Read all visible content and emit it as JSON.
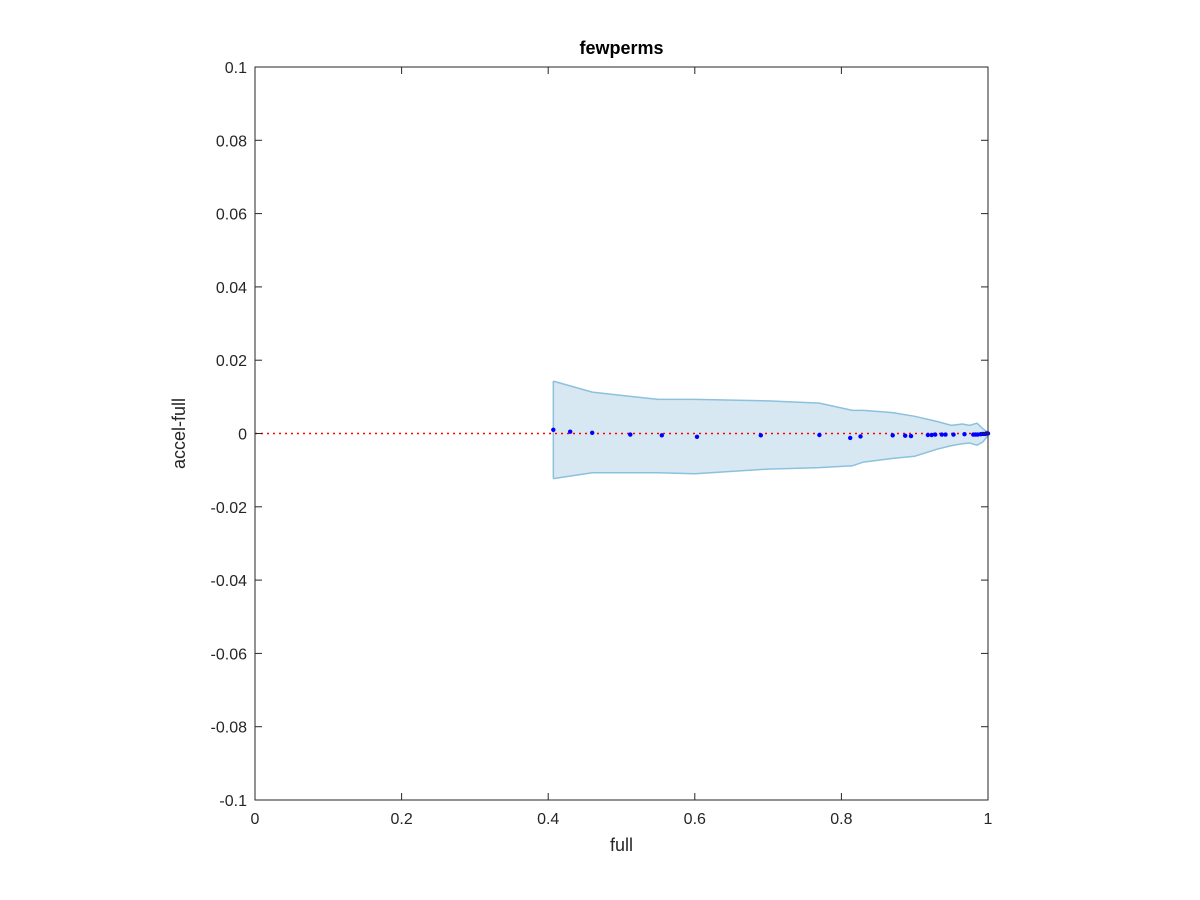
{
  "chart_data": {
    "type": "scatter",
    "title": "fewperms",
    "xlabel": "full",
    "ylabel": "accel-full",
    "xlim": [
      0,
      1
    ],
    "ylim": [
      -0.1,
      0.1
    ],
    "xticks": [
      "0",
      "0.2",
      "0.4",
      "0.6",
      "0.8",
      "1"
    ],
    "xtick_values": [
      0,
      0.2,
      0.4,
      0.6,
      0.8,
      1
    ],
    "yticks": [
      "-0.1",
      "-0.08",
      "-0.06",
      "-0.04",
      "-0.02",
      "0",
      "0.02",
      "0.04",
      "0.06",
      "0.08",
      "0.1"
    ],
    "ytick_values": [
      -0.1,
      -0.08,
      -0.06,
      -0.04,
      -0.02,
      0,
      0.02,
      0.04,
      0.06,
      0.08,
      0.1
    ],
    "grid": false,
    "reference_line": {
      "y": 0,
      "style": "dotted",
      "color": "#ff0000"
    },
    "band": {
      "color": "#d8e8f3",
      "edge_color": "#8cc1de",
      "upper": [
        [
          0.407,
          0.0143
        ],
        [
          0.46,
          0.0113
        ],
        [
          0.55,
          0.0093
        ],
        [
          0.6,
          0.0093
        ],
        [
          0.7,
          0.0089
        ],
        [
          0.77,
          0.0083
        ],
        [
          0.815,
          0.0063
        ],
        [
          0.83,
          0.0063
        ],
        [
          0.87,
          0.0057
        ],
        [
          0.9,
          0.0047
        ],
        [
          0.93,
          0.0033
        ],
        [
          0.95,
          0.0022
        ],
        [
          0.965,
          0.0026
        ],
        [
          0.975,
          0.0022
        ],
        [
          0.985,
          0.0028
        ],
        [
          0.993,
          0.0013
        ],
        [
          1.0,
          0.0003
        ]
      ],
      "lower": [
        [
          0.407,
          -0.0123
        ],
        [
          0.46,
          -0.0107
        ],
        [
          0.55,
          -0.0107
        ],
        [
          0.6,
          -0.011
        ],
        [
          0.7,
          -0.0097
        ],
        [
          0.77,
          -0.0093
        ],
        [
          0.815,
          -0.0088
        ],
        [
          0.83,
          -0.0078
        ],
        [
          0.87,
          -0.0068
        ],
        [
          0.9,
          -0.0062
        ],
        [
          0.93,
          -0.0043
        ],
        [
          0.95,
          -0.0033
        ],
        [
          0.965,
          -0.0028
        ],
        [
          0.975,
          -0.0026
        ],
        [
          0.985,
          -0.0032
        ],
        [
          0.993,
          -0.0023
        ],
        [
          1.0,
          -0.0005
        ]
      ]
    },
    "series": [
      {
        "color": "#0000ff",
        "points": [
          [
            0.407,
            0.001
          ],
          [
            0.43,
            0.0005
          ],
          [
            0.46,
            0.0002
          ],
          [
            0.512,
            -0.0003
          ],
          [
            0.555,
            -0.0005
          ],
          [
            0.603,
            -0.0009
          ],
          [
            0.69,
            -0.0005
          ],
          [
            0.77,
            -0.0004
          ],
          [
            0.812,
            -0.0012
          ],
          [
            0.826,
            -0.0008
          ],
          [
            0.87,
            -0.0005
          ],
          [
            0.887,
            -0.0006
          ],
          [
            0.895,
            -0.0007
          ],
          [
            0.918,
            -0.0004
          ],
          [
            0.923,
            -0.0004
          ],
          [
            0.928,
            -0.0003
          ],
          [
            0.937,
            -0.0003
          ],
          [
            0.942,
            -0.0003
          ],
          [
            0.953,
            -0.0003
          ],
          [
            0.968,
            -0.0002
          ],
          [
            0.98,
            -0.0003
          ],
          [
            0.983,
            -0.0003
          ],
          [
            0.986,
            -0.0003
          ],
          [
            0.99,
            -0.0002
          ],
          [
            0.993,
            -0.0001
          ],
          [
            0.996,
            -0.0001
          ],
          [
            0.998,
            0.0
          ],
          [
            1.0,
            0.0
          ]
        ]
      }
    ]
  }
}
